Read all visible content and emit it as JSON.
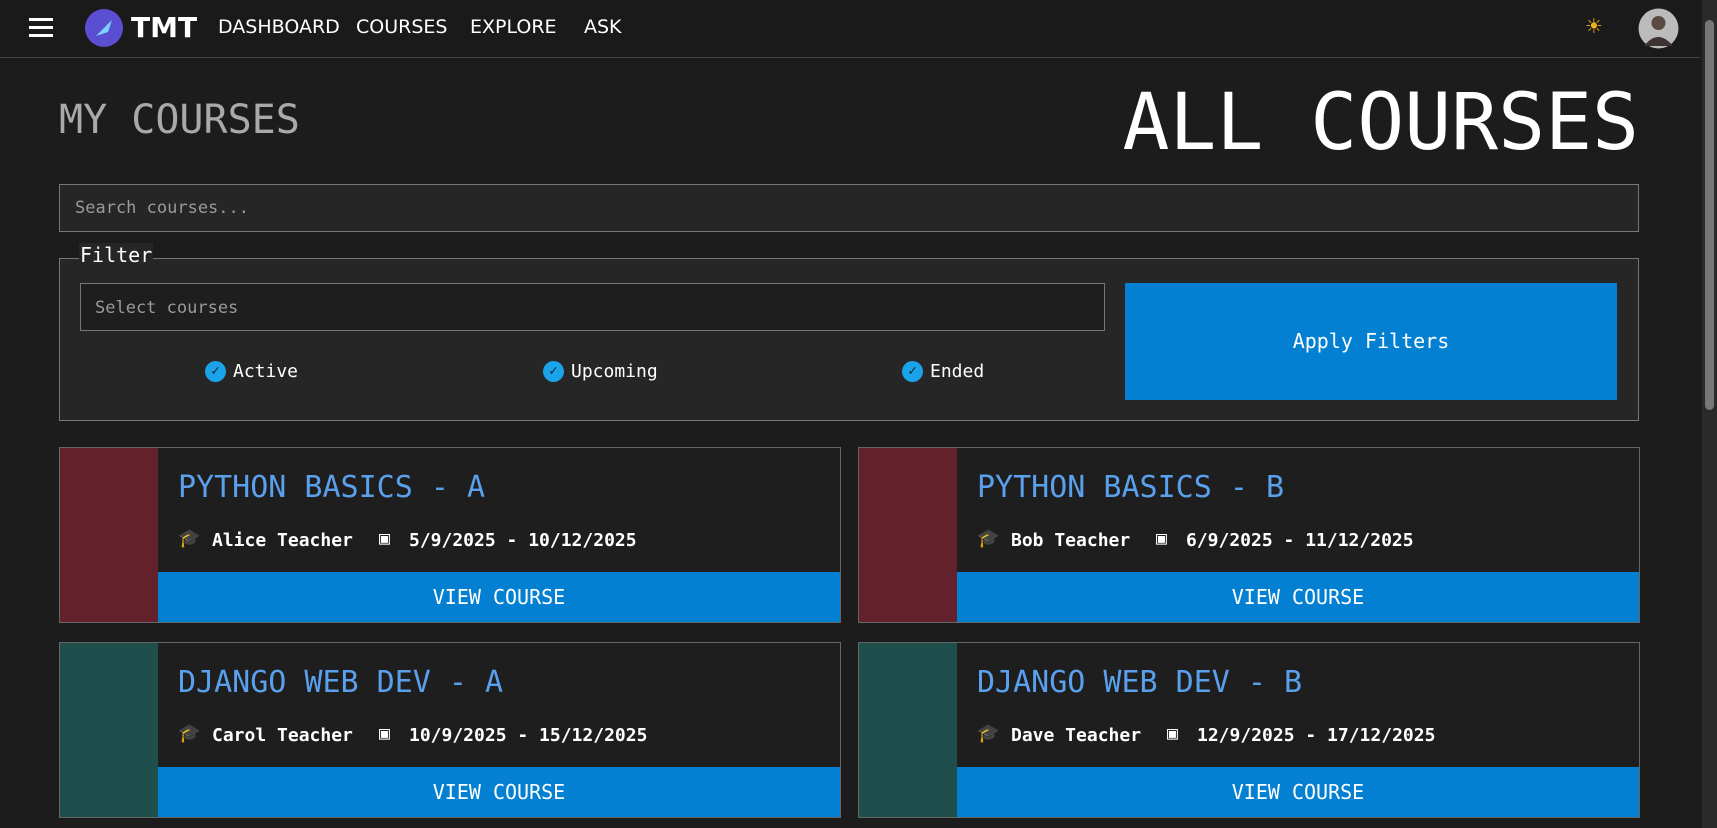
{
  "nav": {
    "brand": "TMT",
    "links": [
      "DASHBOARD",
      "COURSES",
      "EXPLORE",
      "ASK"
    ]
  },
  "header": {
    "subtitle": "MY COURSES",
    "title": "ALL COURSES"
  },
  "search": {
    "placeholder": "Search courses..."
  },
  "filter": {
    "legend": "Filter",
    "select_placeholder": "Select courses",
    "options": [
      "Active",
      "Upcoming",
      "Ended"
    ],
    "apply": "Apply Filters"
  },
  "courses": [
    {
      "title": "PYTHON BASICS - A",
      "teacher": "Alice Teacher",
      "dates": "5/9/2025 - 10/12/2025",
      "action": "VIEW COURSE",
      "color": "#63222b"
    },
    {
      "title": "PYTHON BASICS - B",
      "teacher": "Bob Teacher",
      "dates": "6/9/2025 - 11/12/2025",
      "action": "VIEW COURSE",
      "color": "#63222b"
    },
    {
      "title": "DJANGO WEB DEV - A",
      "teacher": "Carol Teacher",
      "dates": "10/9/2025 - 15/12/2025",
      "action": "VIEW COURSE",
      "color": "#1f4f4c"
    },
    {
      "title": "DJANGO WEB DEV - B",
      "teacher": "Dave Teacher",
      "dates": "12/9/2025 - 17/12/2025",
      "action": "VIEW COURSE",
      "color": "#1f4f4c"
    }
  ]
}
